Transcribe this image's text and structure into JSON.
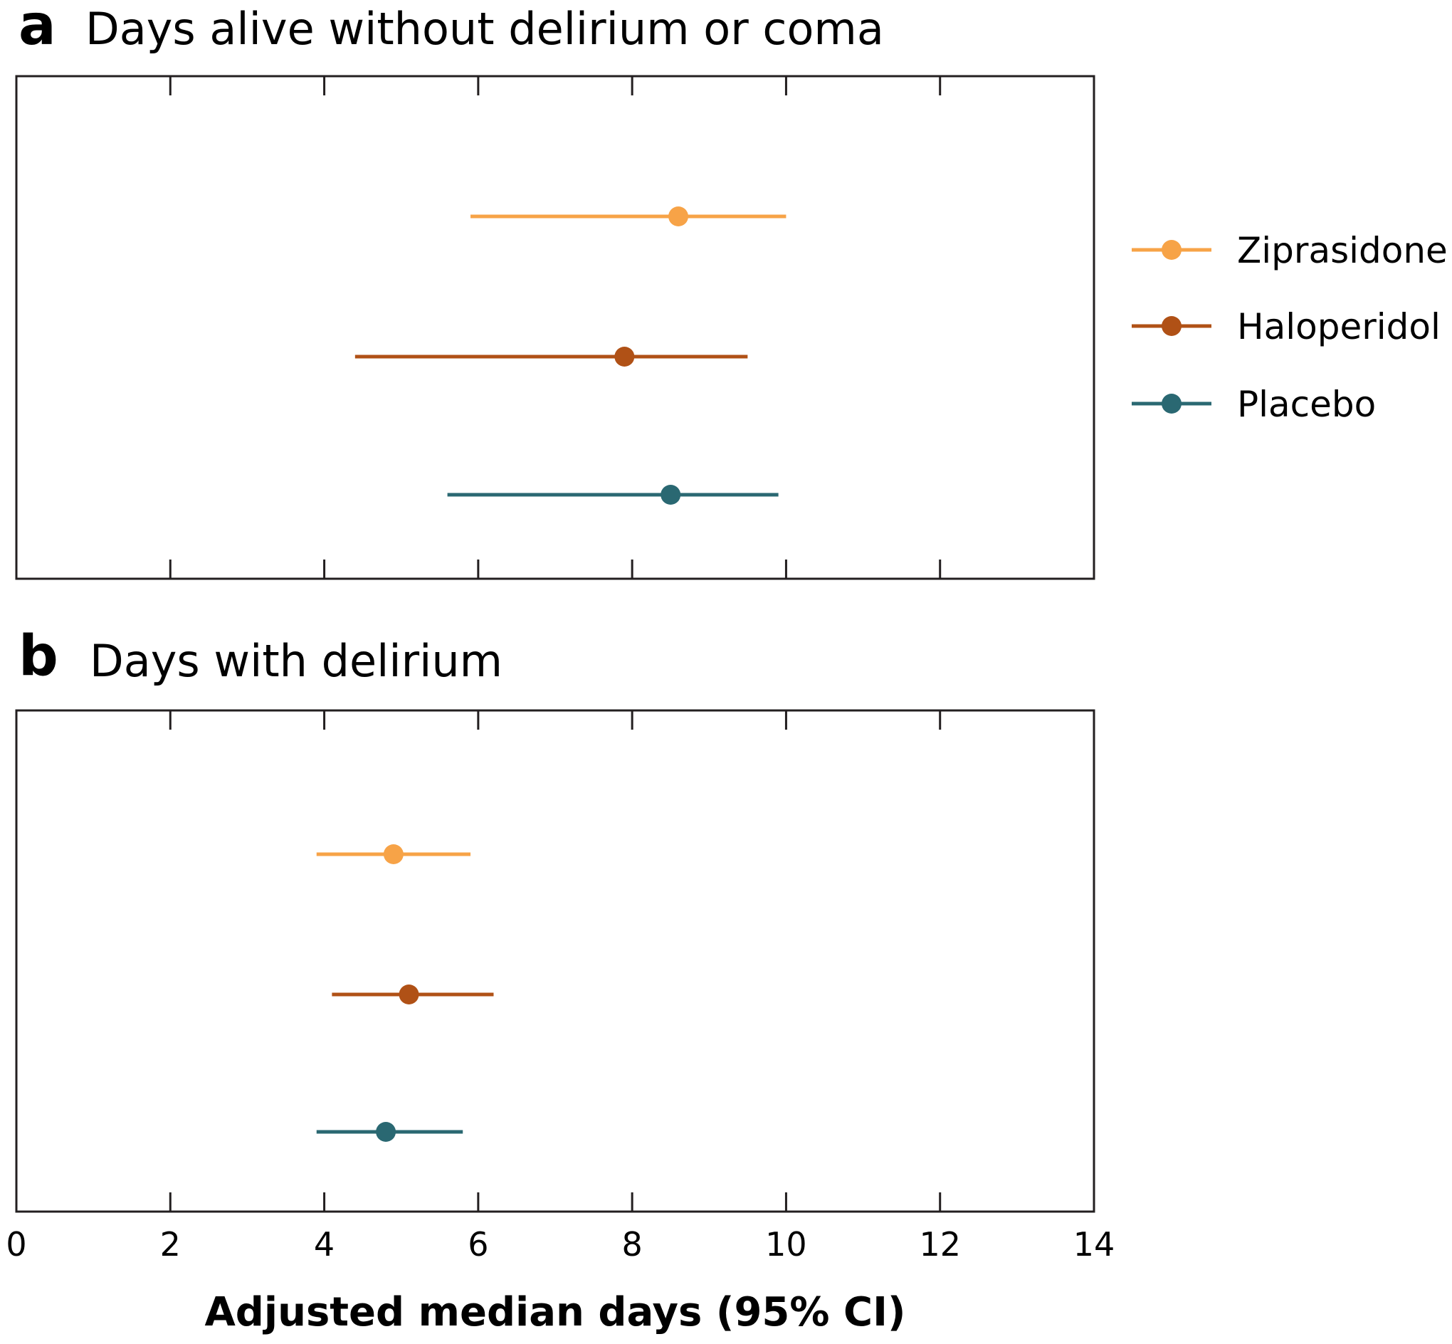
{
  "chart_data": [
    {
      "type": "forest",
      "panel": "a",
      "title": "Days alive without delirium or coma",
      "series": [
        {
          "name": "Ziprasidone",
          "median": 8.6,
          "ci": [
            5.9,
            10.0
          ]
        },
        {
          "name": "Haloperidol",
          "median": 7.9,
          "ci": [
            4.4,
            9.5
          ]
        },
        {
          "name": "Placebo",
          "median": 8.5,
          "ci": [
            5.6,
            9.9
          ]
        }
      ]
    },
    {
      "type": "forest",
      "panel": "b",
      "title": "Days with delirium",
      "series": [
        {
          "name": "Ziprasidone",
          "median": 4.9,
          "ci": [
            3.9,
            5.9
          ]
        },
        {
          "name": "Haloperidol",
          "median": 5.1,
          "ci": [
            4.1,
            6.2
          ]
        },
        {
          "name": "Placebo",
          "median": 4.8,
          "ci": [
            3.9,
            5.8
          ]
        }
      ]
    }
  ],
  "axis": {
    "xlabel": "Adjusted median days (95% CI)",
    "xlim": [
      0,
      14
    ],
    "ticks": [
      "0",
      "2",
      "4",
      "6",
      "8",
      "10",
      "12",
      "14"
    ],
    "tick_values": [
      0,
      2,
      4,
      6,
      8,
      10,
      12,
      14
    ]
  },
  "legend": {
    "placement": "right",
    "items": [
      {
        "label": "Ziprasidone",
        "color": "#F7A347"
      },
      {
        "label": "Haloperidol",
        "color": "#B05116"
      },
      {
        "label": "Placebo",
        "color": "#2A6872"
      }
    ]
  },
  "colors": {
    "Ziprasidone": "#F7A347",
    "Haloperidol": "#B05116",
    "Placebo": "#2A6872"
  }
}
